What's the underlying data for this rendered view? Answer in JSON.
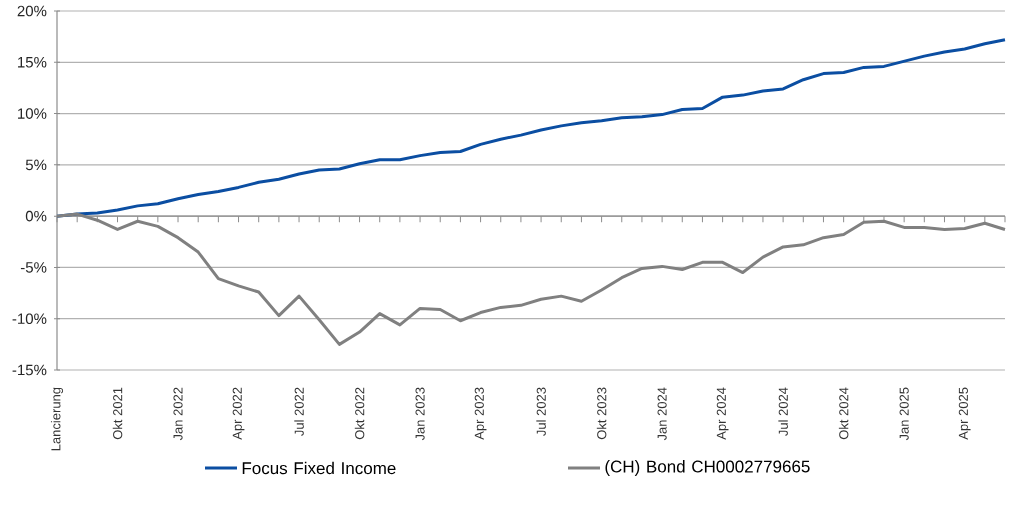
{
  "chart_data": {
    "type": "line",
    "categories": [
      "Lancierung",
      null,
      null,
      "Okt 2021",
      null,
      null,
      "Jan 2022",
      null,
      null,
      "Apr 2022",
      null,
      null,
      "Jul 2022",
      null,
      null,
      "Okt 2022",
      null,
      null,
      "Jan 2023",
      null,
      null,
      "Apr 2023",
      null,
      null,
      "Jul 2023",
      null,
      null,
      "Okt 2023",
      null,
      null,
      "Jan 2024",
      null,
      null,
      "Apr 2024",
      null,
      null,
      "Jul 2024",
      null,
      null,
      "Okt 2024",
      null,
      null,
      "Jan 2025",
      null,
      null,
      "Apr 2025",
      null,
      null
    ],
    "series": [
      {
        "name": "Focus Fixed Income",
        "color": "#0b4ea2",
        "values": [
          0,
          0.2,
          0.3,
          0.6,
          1.0,
          1.2,
          1.7,
          2.1,
          2.4,
          2.8,
          3.3,
          3.6,
          4.1,
          4.5,
          4.6,
          5.1,
          5.5,
          5.5,
          5.9,
          6.2,
          6.3,
          7.0,
          7.5,
          7.9,
          8.4,
          8.8,
          9.1,
          9.3,
          9.6,
          9.7,
          9.9,
          10.4,
          10.5,
          11.6,
          11.8,
          12.2,
          12.4,
          13.3,
          13.9,
          14.0,
          14.5,
          14.6,
          15.1,
          15.6,
          16.0,
          16.3,
          16.8,
          17.2
        ]
      },
      {
        "name": "(CH) Bond CH0002779665",
        "color": "#808080",
        "values": [
          0,
          0.2,
          -0.4,
          -1.3,
          -0.5,
          -1.0,
          -2.1,
          -3.5,
          -6.1,
          -6.8,
          -7.4,
          -9.7,
          -7.8,
          -10.1,
          -12.5,
          -11.3,
          -9.5,
          -10.6,
          -9.0,
          -9.1,
          -10.2,
          -9.4,
          -8.9,
          -8.7,
          -8.1,
          -7.8,
          -8.3,
          -7.2,
          -6.0,
          -5.1,
          -4.9,
          -5.2,
          -4.5,
          -4.5,
          -5.5,
          -4.0,
          -3.0,
          -2.8,
          -2.1,
          -1.8,
          -0.6,
          -0.5,
          -1.1,
          -1.1,
          -1.3,
          -1.2,
          -0.7,
          -1.3
        ]
      }
    ],
    "ylim": [
      -15,
      20
    ],
    "yticks": [
      {
        "value": -15,
        "label": "-15%"
      },
      {
        "value": -10,
        "label": "-10%"
      },
      {
        "value": -5,
        "label": "-5%"
      },
      {
        "value": 0,
        "label": "0%"
      },
      {
        "value": 5,
        "label": "5%"
      },
      {
        "value": 10,
        "label": "10%"
      },
      {
        "value": 15,
        "label": "15%"
      },
      {
        "value": 20,
        "label": "20%"
      }
    ],
    "grid": "y",
    "legend": "bottom"
  }
}
